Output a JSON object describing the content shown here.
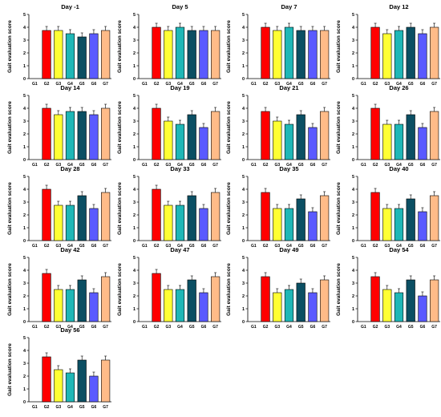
{
  "figure": {
    "groups": [
      "G1",
      "G2",
      "G3",
      "G4",
      "G5",
      "G6",
      "G7"
    ],
    "group_colors": [
      "#ffffff",
      "#ff0000",
      "#ffff33",
      "#1fb7b7",
      "#0b4f63",
      "#5a5aff",
      "#ffbb88"
    ],
    "ylabel": "Gait evaluation score",
    "yticks": [
      "0",
      "1",
      "2",
      "3",
      "4",
      "5"
    ]
  },
  "chart_data": [
    {
      "type": "bar",
      "title": "Day -1",
      "categories": [
        "G1",
        "G2",
        "G3",
        "G4",
        "G5",
        "G6",
        "G7"
      ],
      "values": [
        0,
        3.75,
        3.75,
        3.5,
        3.25,
        3.5,
        3.75
      ],
      "ylim": [
        0,
        5
      ]
    },
    {
      "type": "bar",
      "title": "Day 5",
      "categories": [
        "G1",
        "G2",
        "G3",
        "G4",
        "G5",
        "G6",
        "G7"
      ],
      "values": [
        0,
        4.0,
        3.75,
        4.0,
        3.75,
        3.75,
        3.75
      ],
      "ylim": [
        0,
        5
      ]
    },
    {
      "type": "bar",
      "title": "Day 7",
      "categories": [
        "G1",
        "G2",
        "G3",
        "G4",
        "G5",
        "G6",
        "G7"
      ],
      "values": [
        0,
        4.0,
        3.75,
        4.0,
        3.75,
        3.75,
        3.75
      ],
      "ylim": [
        0,
        5
      ]
    },
    {
      "type": "bar",
      "title": "Day 12",
      "categories": [
        "G1",
        "G2",
        "G3",
        "G4",
        "G5",
        "G6",
        "G7"
      ],
      "values": [
        0,
        4.0,
        3.5,
        3.75,
        4.0,
        3.5,
        4.0
      ],
      "ylim": [
        0,
        5
      ]
    },
    {
      "type": "bar",
      "title": "Day 14",
      "categories": [
        "G1",
        "G2",
        "G3",
        "G4",
        "G5",
        "G6",
        "G7"
      ],
      "values": [
        0,
        4.0,
        3.5,
        3.75,
        3.75,
        3.5,
        4.0
      ],
      "ylim": [
        0,
        5
      ]
    },
    {
      "type": "bar",
      "title": "Day 19",
      "categories": [
        "G1",
        "G2",
        "G3",
        "G4",
        "G5",
        "G6",
        "G7"
      ],
      "values": [
        0,
        4.0,
        3.0,
        2.75,
        3.5,
        2.5,
        3.75
      ],
      "ylim": [
        0,
        5
      ]
    },
    {
      "type": "bar",
      "title": "Day 21",
      "categories": [
        "G1",
        "G2",
        "G3",
        "G4",
        "G5",
        "G6",
        "G7"
      ],
      "values": [
        0,
        3.75,
        3.0,
        2.75,
        3.5,
        2.5,
        3.75
      ],
      "ylim": [
        0,
        5
      ]
    },
    {
      "type": "bar",
      "title": "Day 26",
      "categories": [
        "G1",
        "G2",
        "G3",
        "G4",
        "G5",
        "G6",
        "G7"
      ],
      "values": [
        0,
        4.0,
        2.75,
        2.75,
        3.5,
        2.5,
        3.75
      ],
      "ylim": [
        0,
        5
      ]
    },
    {
      "type": "bar",
      "title": "Day 28",
      "categories": [
        "G1",
        "G2",
        "G3",
        "G4",
        "G5",
        "G6",
        "G7"
      ],
      "values": [
        0,
        4.0,
        2.75,
        2.75,
        3.5,
        2.5,
        3.75
      ],
      "ylim": [
        0,
        5
      ]
    },
    {
      "type": "bar",
      "title": "Day 33",
      "categories": [
        "G1",
        "G2",
        "G3",
        "G4",
        "G5",
        "G6",
        "G7"
      ],
      "values": [
        0,
        4.0,
        2.75,
        2.75,
        3.5,
        2.5,
        3.75
      ],
      "ylim": [
        0,
        5
      ]
    },
    {
      "type": "bar",
      "title": "Day 35",
      "categories": [
        "G1",
        "G2",
        "G3",
        "G4",
        "G5",
        "G6",
        "G7"
      ],
      "values": [
        0,
        3.75,
        2.5,
        2.5,
        3.25,
        2.25,
        3.5
      ],
      "ylim": [
        0,
        5
      ]
    },
    {
      "type": "bar",
      "title": "Day 40",
      "categories": [
        "G1",
        "G2",
        "G3",
        "G4",
        "G5",
        "G6",
        "G7"
      ],
      "values": [
        0,
        3.75,
        2.5,
        2.5,
        3.25,
        2.25,
        3.5
      ],
      "ylim": [
        0,
        5
      ]
    },
    {
      "type": "bar",
      "title": "Day 42",
      "categories": [
        "G1",
        "G2",
        "G3",
        "G4",
        "G5",
        "G6",
        "G7"
      ],
      "values": [
        0,
        3.75,
        2.5,
        2.5,
        3.25,
        2.25,
        3.5
      ],
      "ylim": [
        0,
        5
      ]
    },
    {
      "type": "bar",
      "title": "Day 47",
      "categories": [
        "G1",
        "G2",
        "G3",
        "G4",
        "G5",
        "G6",
        "G7"
      ],
      "values": [
        0,
        3.75,
        2.5,
        2.5,
        3.25,
        2.25,
        3.5
      ],
      "ylim": [
        0,
        5
      ]
    },
    {
      "type": "bar",
      "title": "Day 49",
      "categories": [
        "G1",
        "G2",
        "G3",
        "G4",
        "G5",
        "G6",
        "G7"
      ],
      "values": [
        0,
        3.5,
        2.25,
        2.5,
        3.0,
        2.25,
        3.25
      ],
      "ylim": [
        0,
        5
      ]
    },
    {
      "type": "bar",
      "title": "Day 54",
      "categories": [
        "G1",
        "G2",
        "G3",
        "G4",
        "G5",
        "G6",
        "G7"
      ],
      "values": [
        0,
        3.5,
        2.5,
        2.25,
        3.25,
        2.0,
        3.25
      ],
      "ylim": [
        0,
        5
      ]
    },
    {
      "type": "bar",
      "title": "Day 56",
      "categories": [
        "G1",
        "G2",
        "G3",
        "G4",
        "G5",
        "G6",
        "G7"
      ],
      "values": [
        0,
        3.5,
        2.5,
        2.25,
        3.25,
        2.0,
        3.25
      ],
      "ylim": [
        0,
        5
      ]
    }
  ]
}
